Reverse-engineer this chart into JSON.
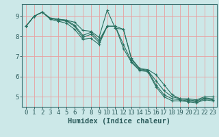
{
  "xlabel": "Humidex (Indice chaleur)",
  "ylabel": "",
  "bg_color": "#cce8e8",
  "grid_color_h": "#e8a0a0",
  "grid_color_v": "#e8a0a0",
  "line_color": "#2a7060",
  "xlim": [
    -0.5,
    23.5
  ],
  "ylim": [
    4.5,
    9.6
  ],
  "yticks": [
    5,
    6,
    7,
    8,
    9
  ],
  "xticks": [
    0,
    1,
    2,
    3,
    4,
    5,
    6,
    7,
    8,
    9,
    10,
    11,
    12,
    13,
    14,
    15,
    16,
    17,
    18,
    19,
    20,
    21,
    22,
    23
  ],
  "lines": [
    [
      8.5,
      9.0,
      9.2,
      8.9,
      8.85,
      8.8,
      8.7,
      8.3,
      8.25,
      7.95,
      9.3,
      8.4,
      8.35,
      6.9,
      6.4,
      6.35,
      6.1,
      5.6,
      5.1,
      4.9,
      4.9,
      4.85,
      5.0,
      5.0
    ],
    [
      8.5,
      9.0,
      9.2,
      8.9,
      8.85,
      8.8,
      8.55,
      8.05,
      8.2,
      7.8,
      8.5,
      8.5,
      8.35,
      6.85,
      6.4,
      6.3,
      5.8,
      5.3,
      5.0,
      4.9,
      4.85,
      4.8,
      4.95,
      4.9
    ],
    [
      8.5,
      9.0,
      9.2,
      8.9,
      8.8,
      8.75,
      8.5,
      7.95,
      8.1,
      7.7,
      8.5,
      8.5,
      7.6,
      6.75,
      6.35,
      6.3,
      5.6,
      5.1,
      4.9,
      4.85,
      4.8,
      4.75,
      4.9,
      4.85
    ],
    [
      8.5,
      9.0,
      9.2,
      8.85,
      8.75,
      8.65,
      8.35,
      7.85,
      7.9,
      7.6,
      8.5,
      8.5,
      7.4,
      6.7,
      6.3,
      6.25,
      5.5,
      5.0,
      4.8,
      4.8,
      4.75,
      4.7,
      4.85,
      4.8
    ]
  ],
  "tick_fontsize": 6.5,
  "xlabel_fontsize": 7.5
}
